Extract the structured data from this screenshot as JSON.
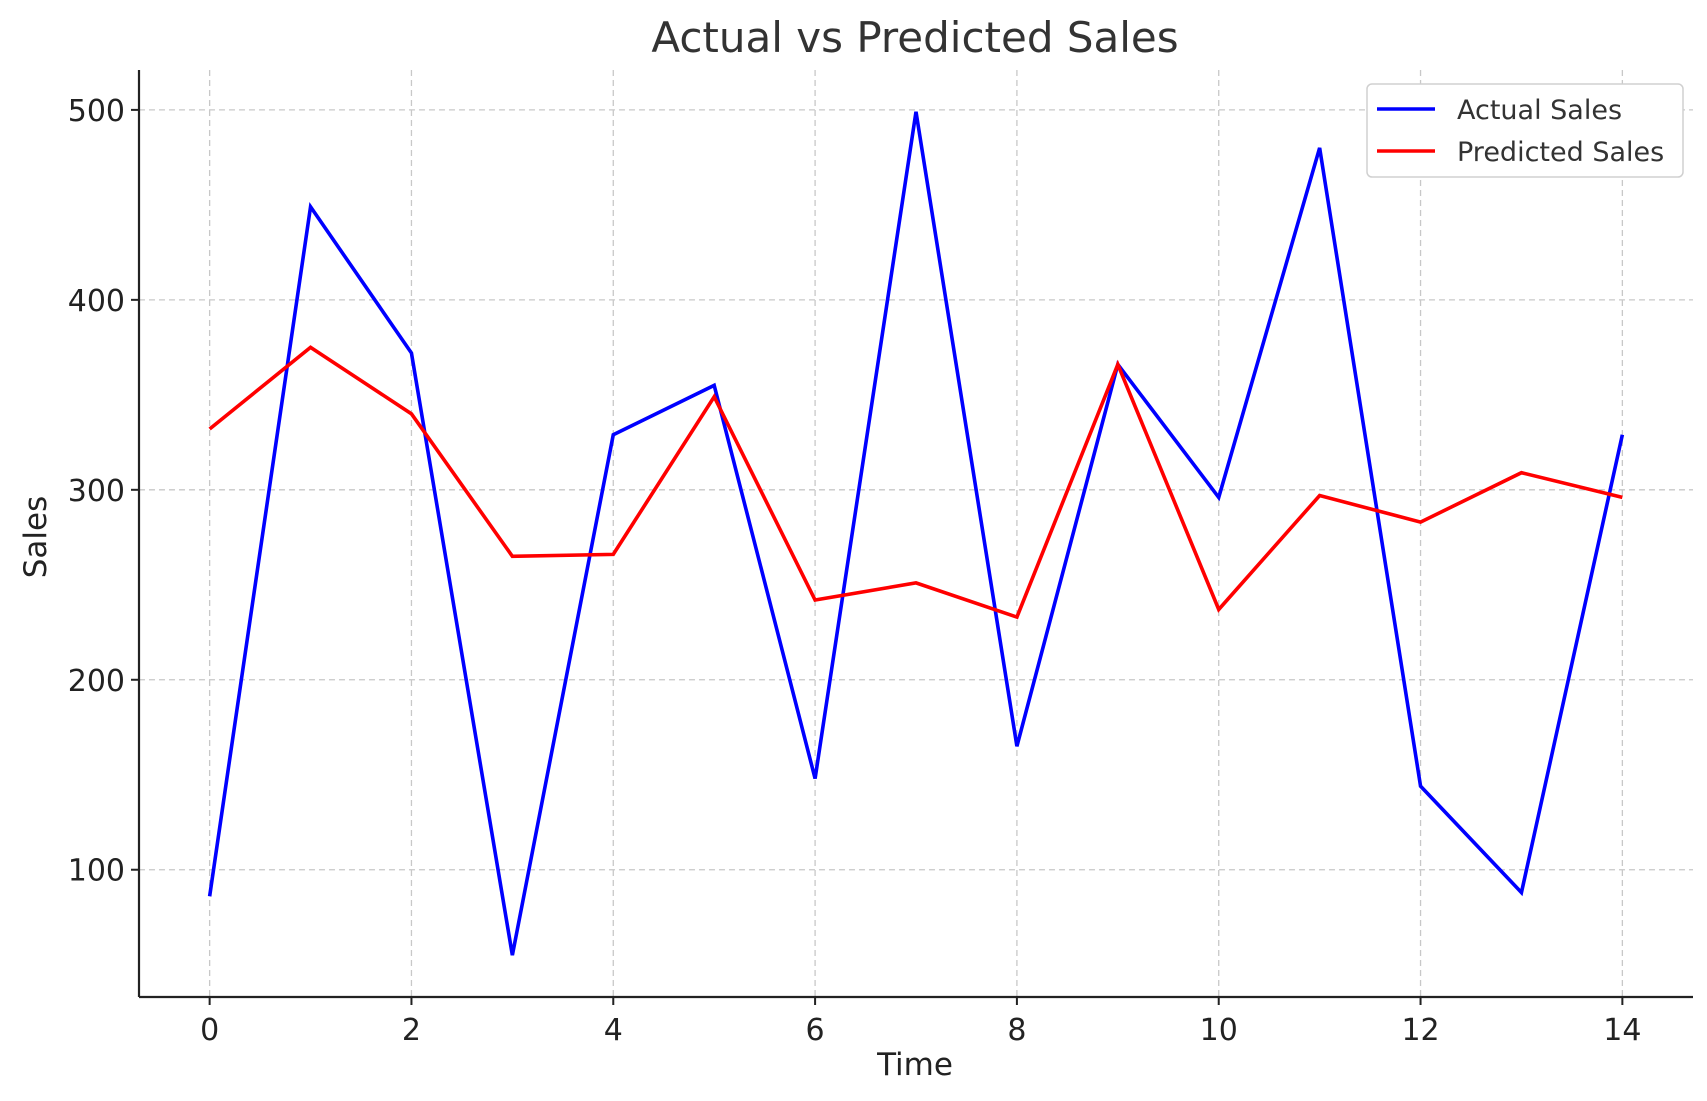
{
  "chart_data": {
    "type": "line",
    "title": "Actual vs Predicted Sales",
    "xlabel": "Time",
    "ylabel": "Sales",
    "x": [
      0,
      1,
      2,
      3,
      4,
      5,
      6,
      7,
      8,
      9,
      10,
      11,
      12,
      13,
      14
    ],
    "series": [
      {
        "name": "Actual Sales",
        "color": "#0000ff",
        "values": [
          86,
          449,
          372,
          55,
          329,
          355,
          148,
          499,
          165,
          366,
          296,
          480,
          144,
          88,
          329
        ]
      },
      {
        "name": "Predicted Sales",
        "color": "#ff0000",
        "values": [
          332,
          375,
          340,
          265,
          266,
          349,
          242,
          251,
          233,
          366,
          237,
          297,
          283,
          309,
          296
        ]
      }
    ],
    "xlim": [
      -0.7,
      14.7
    ],
    "ylim": [
      33,
      521
    ],
    "xticks": [
      0,
      2,
      4,
      6,
      8,
      10,
      12,
      14
    ],
    "yticks": [
      100,
      200,
      300,
      400,
      500
    ],
    "grid": true,
    "legend_position": "top-right"
  }
}
